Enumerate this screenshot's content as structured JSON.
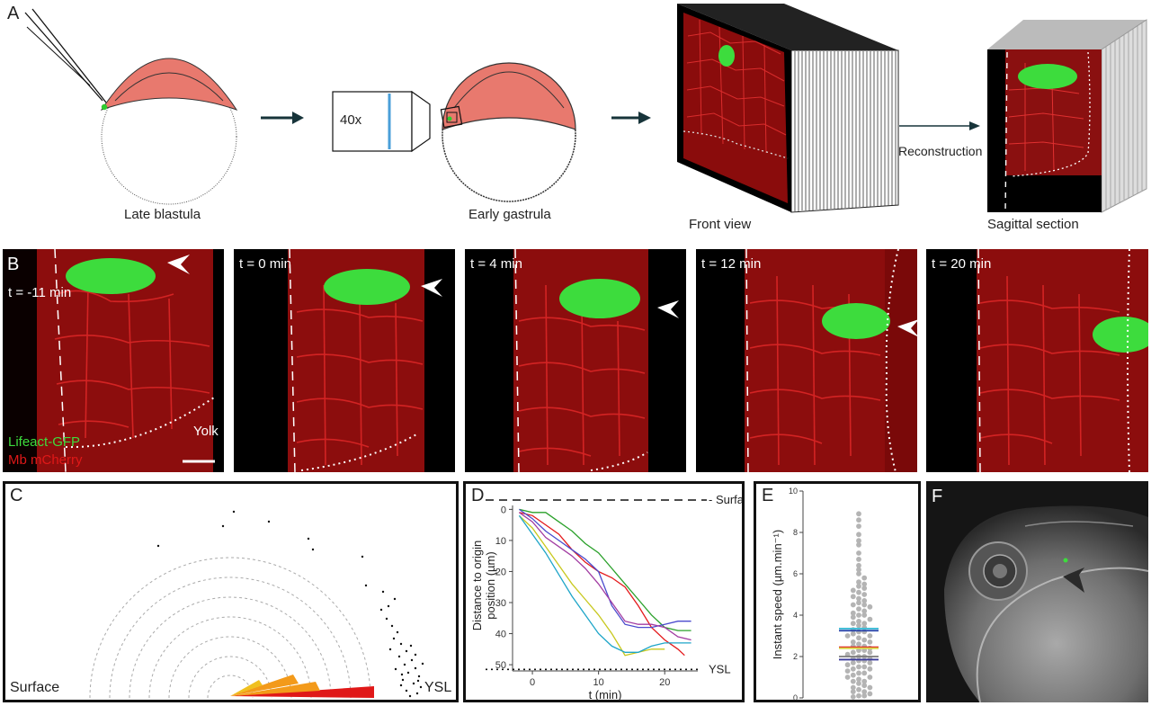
{
  "panel_letters": {
    "a": "A",
    "b": "B",
    "c": "C",
    "d": "D",
    "e": "E",
    "f": "F"
  },
  "panelA": {
    "late_blastula": "Late blastula",
    "objective": "40x",
    "early_gastrula": "Early gastrula",
    "front_view": "Front view",
    "reconstruction": "Reconstruction",
    "sagittal_section": "Sagittal section",
    "colors": {
      "blastoderm": "#e8796e",
      "arrow": "#17343a"
    }
  },
  "panelB": {
    "frames": [
      {
        "time": "t = -11 min"
      },
      {
        "time": "t = 0 min"
      },
      {
        "time": "t = 4 min"
      },
      {
        "time": "t = 12 min"
      },
      {
        "time": "t = 20 min"
      }
    ],
    "yolk": "Yolk",
    "legend_gfp": "Lifeact-GFP",
    "legend_mcherry": "Mb mCherry",
    "colors": {
      "gfp": "#3ddc3d",
      "mcherry": "#e01818"
    }
  },
  "panelC": {
    "surface": "Surface",
    "ysl": "YSL"
  },
  "chart_data": [
    {
      "type": "line",
      "panel": "D",
      "xlabel": "t (min)",
      "ylabel": "Distance to origin position (µm)",
      "x_ticks": [
        0,
        10,
        20
      ],
      "y_ticks": [
        0,
        10,
        20,
        30,
        40,
        50
      ],
      "xlim": [
        -3,
        25
      ],
      "ylim": [
        -3,
        52
      ],
      "y_inverted": true,
      "reference_lines": [
        {
          "label": "- Surface",
          "y": -3
        },
        {
          "label": "YSL",
          "y": 51.5
        }
      ],
      "series": [
        {
          "color": "#2aa02a",
          "x": [
            -2,
            0,
            2,
            4,
            6,
            8,
            10,
            12,
            14,
            16,
            18,
            20,
            22,
            24
          ],
          "y": [
            0,
            1,
            1,
            4,
            7,
            11,
            14,
            19,
            24,
            29,
            34,
            38,
            39,
            39
          ]
        },
        {
          "color": "#e41a1c",
          "x": [
            -2,
            0,
            2,
            4,
            6,
            8,
            10,
            12,
            14,
            16,
            18,
            20,
            22,
            23
          ],
          "y": [
            1,
            2,
            5,
            8,
            13,
            17,
            20,
            22,
            25,
            31,
            38,
            42,
            45,
            47
          ]
        },
        {
          "color": "#4a4acd",
          "x": [
            -2,
            0,
            2,
            4,
            6,
            8,
            10,
            12,
            14,
            16,
            18,
            20,
            22,
            24
          ],
          "y": [
            0,
            3,
            7,
            10,
            13,
            16,
            20,
            31,
            37,
            38,
            38,
            37,
            36,
            36
          ]
        },
        {
          "color": "#a23ca2",
          "x": [
            -2,
            0,
            2,
            4,
            6,
            8,
            10,
            12,
            14,
            16,
            18,
            20,
            22,
            24
          ],
          "y": [
            1,
            4,
            9,
            12,
            15,
            19,
            24,
            30,
            36,
            37,
            37,
            38,
            41,
            42
          ]
        },
        {
          "color": "#c8c81e",
          "x": [
            -2,
            0,
            2,
            4,
            6,
            8,
            10,
            12,
            14,
            16,
            18,
            20
          ],
          "y": [
            2,
            6,
            12,
            18,
            24,
            29,
            34,
            40,
            47,
            46,
            45,
            45
          ]
        },
        {
          "color": "#1ea5c8",
          "x": [
            -2,
            0,
            2,
            4,
            6,
            8,
            10,
            12,
            14,
            16,
            18,
            20,
            22,
            24
          ],
          "y": [
            2,
            8,
            14,
            21,
            28,
            34,
            40,
            44,
            46,
            46,
            44,
            43,
            43,
            43
          ]
        }
      ]
    },
    {
      "type": "scatter",
      "panel": "E",
      "ylabel": "Instant speed (µm.min⁻¹)",
      "y_ticks": [
        0,
        2,
        4,
        6,
        8,
        10
      ],
      "ylim": [
        0,
        10
      ],
      "mean_lines": [
        {
          "color": "#1f3fa8",
          "value": 3.25
        },
        {
          "color": "#3cbcd6",
          "value": 3.35
        },
        {
          "color": "#e02020",
          "value": 2.45
        },
        {
          "color": "#d8d84a",
          "value": 2.4
        },
        {
          "color": "#7a7a7a",
          "value": 2.0
        },
        {
          "color": "#3a3a9a",
          "value": 1.85
        }
      ],
      "values": [
        8.9,
        8.6,
        8.3,
        7.9,
        7.6,
        7.4,
        7.0,
        6.7,
        6.4,
        6.2,
        6.0,
        5.8,
        5.6,
        5.5,
        5.4,
        5.3,
        5.2,
        5.1,
        5.0,
        4.9,
        4.8,
        4.7,
        4.6,
        4.5,
        4.5,
        4.4,
        4.3,
        4.2,
        4.1,
        4.0,
        4.0,
        3.9,
        3.8,
        3.7,
        3.6,
        3.6,
        3.5,
        3.4,
        3.3,
        3.2,
        3.2,
        3.1,
        3.0,
        3.0,
        2.9,
        2.8,
        2.7,
        2.7,
        2.6,
        2.5,
        2.5,
        2.4,
        2.3,
        2.3,
        2.2,
        2.2,
        2.1,
        2.0,
        2.0,
        1.9,
        1.9,
        1.8,
        1.8,
        1.7,
        1.7,
        1.6,
        1.5,
        1.5,
        1.4,
        1.4,
        1.3,
        1.2,
        1.2,
        1.1,
        1.0,
        1.0,
        0.9,
        0.8,
        0.8,
        0.7,
        0.6,
        0.5,
        0.5,
        0.4,
        0.3,
        0.3,
        0.2,
        0.1,
        0.1,
        0.05
      ]
    }
  ]
}
